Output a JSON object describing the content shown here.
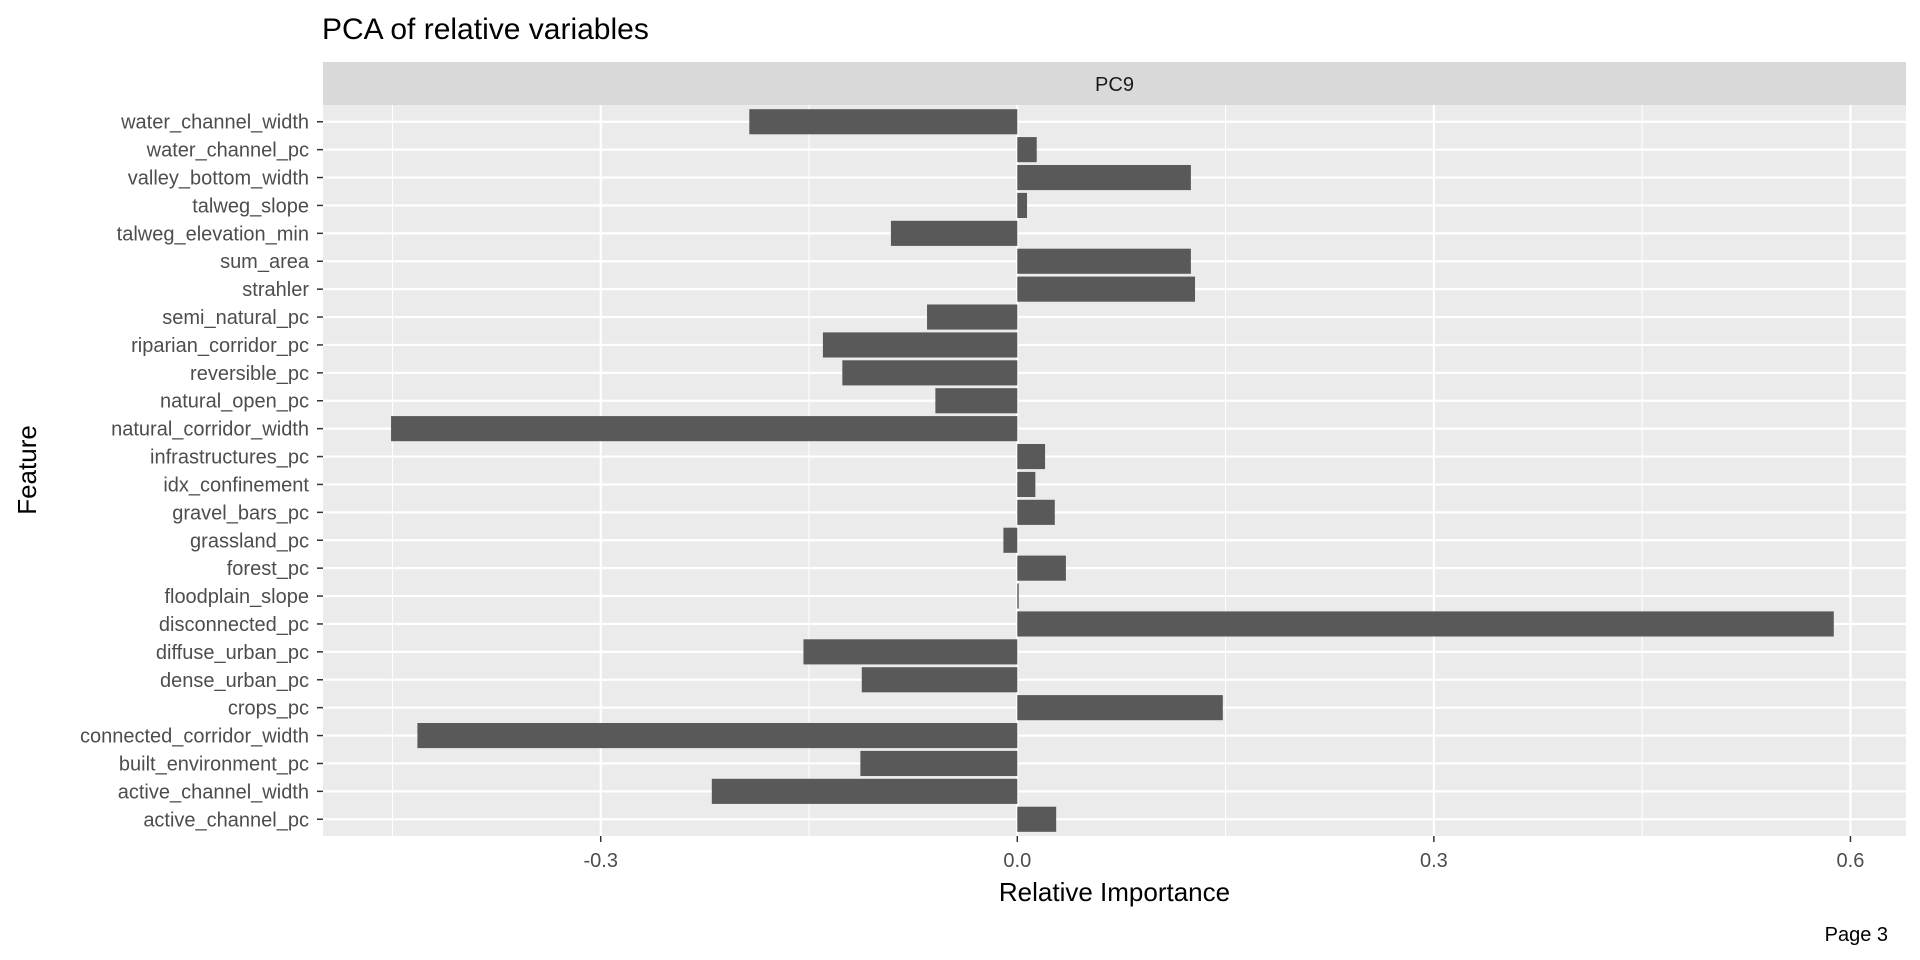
{
  "chart_data": {
    "type": "bar",
    "orientation": "horizontal",
    "title": "PCA of relative variables",
    "facet_label": "PC9",
    "xlabel": "Relative Importance",
    "ylabel": "Feature",
    "caption": "Page 3",
    "xlim": [
      -0.5,
      0.64
    ],
    "x_ticks": [
      -0.3,
      0.0,
      0.3,
      0.6
    ],
    "x_tick_labels": [
      "-0.3",
      "0.0",
      "0.3",
      "0.6"
    ],
    "grid": true,
    "categories": [
      "water_channel_width",
      "water_channel_pc",
      "valley_bottom_width",
      "talweg_slope",
      "talweg_elevation_min",
      "sum_area",
      "strahler",
      "semi_natural_pc",
      "riparian_corridor_pc",
      "reversible_pc",
      "natural_open_pc",
      "natural_corridor_width",
      "infrastructures_pc",
      "idx_confinement",
      "gravel_bars_pc",
      "grassland_pc",
      "forest_pc",
      "floodplain_slope",
      "disconnected_pc",
      "diffuse_urban_pc",
      "dense_urban_pc",
      "crops_pc",
      "connected_corridor_width",
      "built_environment_pc",
      "active_channel_width",
      "active_channel_pc"
    ],
    "values": [
      -0.193,
      0.014,
      0.125,
      0.007,
      -0.091,
      0.125,
      0.128,
      -0.065,
      -0.14,
      -0.126,
      -0.059,
      -0.451,
      0.02,
      0.013,
      0.027,
      -0.01,
      0.035,
      0.001,
      0.588,
      -0.154,
      -0.112,
      0.148,
      -0.432,
      -0.113,
      -0.22,
      0.028
    ],
    "colors": {
      "panel_bg": "#ebebeb",
      "strip_bg": "#d9d9d9",
      "grid": "#ffffff",
      "bar": "#595959"
    }
  }
}
